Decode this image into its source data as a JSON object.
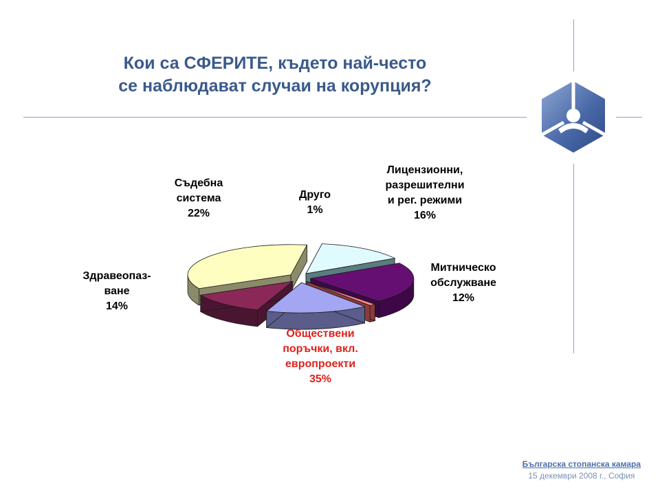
{
  "title": {
    "line1": "Кои са СФЕРИТЕ, където най-често",
    "line2": "се наблюдават случаи на корупция?"
  },
  "footer": {
    "organization": "Българска стопанска камара",
    "date": "15 декември 2008 г., София"
  },
  "logo": {
    "icon": "hexagon-person-logo",
    "colors": [
      "#3d5fa0",
      "#8fa8d4",
      "#ffffff"
    ]
  },
  "chart_data": {
    "type": "pie",
    "style": "3d-exploded",
    "slices": [
      {
        "label_lines": [
          "Обществени",
          "поръчки, вкл.",
          "европроекти",
          "35%"
        ],
        "value": 35,
        "color": "#fefec0",
        "side_color": "#8b8b6a",
        "label_color": "#e0201a"
      },
      {
        "label_lines": [
          "Здравеопаз-",
          "ване",
          "14%"
        ],
        "value": 14,
        "color": "#e0fbfd",
        "side_color": "#5b7c80",
        "label_color": "#000000"
      },
      {
        "label_lines": [
          "Съдебна",
          "система",
          "22%"
        ],
        "value": 22,
        "color": "#660f72",
        "side_color": "#3d0845",
        "label_color": "#000000"
      },
      {
        "label_lines": [
          "Друго",
          "1%"
        ],
        "value": 1,
        "color": "#ff8a8a",
        "side_color": "#8b3a3a",
        "label_color": "#000000"
      },
      {
        "label_lines": [
          "Лицензионни,",
          "разрешителни",
          "и рег. режими",
          "16%"
        ],
        "value": 16,
        "color": "#a3a6f2",
        "side_color": "#5a5c8a",
        "label_color": "#000000"
      },
      {
        "label_lines": [
          "Митническо",
          "обслужване",
          "12%"
        ],
        "value": 12,
        "color": "#8b2858",
        "side_color": "#4a1530",
        "label_color": "#000000"
      }
    ]
  }
}
